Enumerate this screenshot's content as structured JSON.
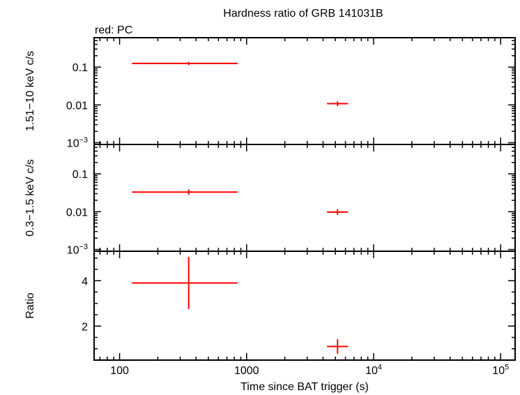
{
  "title": "Hardness ratio of GRB 141031B",
  "legend_label": "red: PC",
  "x_axis": {
    "label": "Time since BAT trigger (s)",
    "ticks": [
      {
        "value": 100,
        "label": "100"
      },
      {
        "value": 1000,
        "label": "1000"
      },
      {
        "value": 10000,
        "label": "10",
        "sup": "4"
      },
      {
        "value": 100000,
        "label": "10",
        "sup": "5"
      }
    ]
  },
  "colors": {
    "series": "#ff0000",
    "axes": "#000000"
  },
  "chart_data": [
    {
      "type": "scatter",
      "panel": "hard-band",
      "ylabel": "1.51−10 keV c/s",
      "xscale": "log",
      "yscale": "log",
      "xlim": [
        63,
        130000
      ],
      "ylim": [
        0.0009,
        0.6
      ],
      "ytick_labels": [
        {
          "value": 0.1,
          "label": "0.1"
        },
        {
          "value": 0.01,
          "label": "0.01"
        },
        {
          "value": 0.001,
          "label": "10",
          "sup": "−3"
        }
      ],
      "series": [
        {
          "color": "#ff0000",
          "points": [
            {
              "x": 350,
              "xlo": 125,
              "xhi": 850,
              "y": 0.125,
              "ylo": 0.113,
              "yhi": 0.138
            },
            {
              "x": 5200,
              "xlo": 4300,
              "xhi": 6300,
              "y": 0.0108,
              "ylo": 0.0093,
              "yhi": 0.0125
            }
          ]
        }
      ]
    },
    {
      "type": "scatter",
      "panel": "soft-band",
      "ylabel": "0.3−1.5 keV c/s",
      "xscale": "log",
      "yscale": "log",
      "xlim": [
        63,
        130000
      ],
      "ylim": [
        0.0009,
        0.6
      ],
      "ytick_labels": [
        {
          "value": 0.1,
          "label": "0.1"
        },
        {
          "value": 0.01,
          "label": "0.01"
        },
        {
          "value": 0.001,
          "label": "10",
          "sup": "−3"
        }
      ],
      "series": [
        {
          "color": "#ff0000",
          "points": [
            {
              "x": 350,
              "xlo": 125,
              "xhi": 850,
              "y": 0.033,
              "ylo": 0.028,
              "yhi": 0.039
            },
            {
              "x": 5200,
              "xlo": 4300,
              "xhi": 6300,
              "y": 0.0098,
              "ylo": 0.0082,
              "yhi": 0.0117
            }
          ]
        }
      ]
    },
    {
      "type": "scatter",
      "panel": "ratio",
      "ylabel": "Ratio",
      "xscale": "log",
      "yscale": "linear",
      "xlim": [
        63,
        130000
      ],
      "ylim": [
        0.5,
        5.3
      ],
      "ytick_labels": [
        {
          "value": 4,
          "label": "4"
        },
        {
          "value": 2,
          "label": "2"
        }
      ],
      "series": [
        {
          "color": "#ff0000",
          "points": [
            {
              "x": 350,
              "xlo": 125,
              "xhi": 850,
              "y": 3.9,
              "ylo": 2.75,
              "yhi": 5.05
            },
            {
              "x": 5200,
              "xlo": 4300,
              "xhi": 6300,
              "y": 1.1,
              "ylo": 0.78,
              "yhi": 1.42
            }
          ]
        }
      ]
    }
  ]
}
